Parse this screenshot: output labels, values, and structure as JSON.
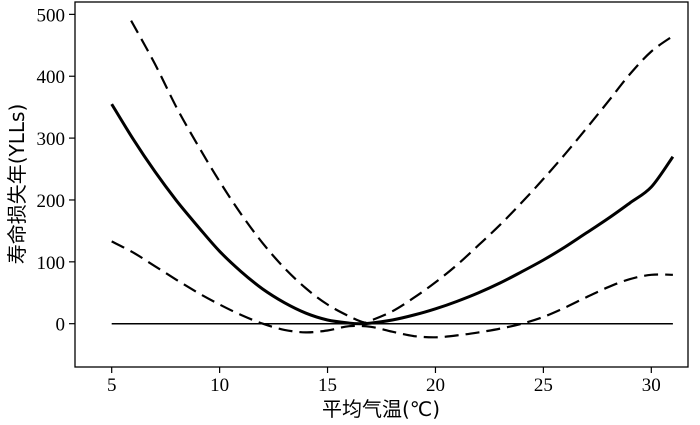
{
  "chart_data": {
    "type": "line",
    "title": "",
    "xlabel": "平均气温(℃)",
    "ylabel": "寿命损失年(YLLs)",
    "xlim": [
      3.3,
      31.7
    ],
    "ylim": [
      -70,
      520
    ],
    "xticks": [
      5,
      10,
      15,
      20,
      25,
      30
    ],
    "yticks": [
      0,
      100,
      200,
      300,
      400,
      500
    ],
    "grid": false,
    "legend": "none",
    "reference_line": {
      "y": 0,
      "x_range": [
        5,
        31
      ]
    },
    "series": [
      {
        "style": "solid",
        "x": [
          5.0,
          6.0,
          7.0,
          8.0,
          9.0,
          10.0,
          11.0,
          12.0,
          13.0,
          14.0,
          15.0,
          16.0,
          16.5,
          17.0,
          18.0,
          19.0,
          20.0,
          21.0,
          22.0,
          23.0,
          24.0,
          25.0,
          26.0,
          27.0,
          28.0,
          29.0,
          30.0,
          31.0
        ],
        "y": [
          355,
          298,
          246,
          199,
          157,
          117,
          84,
          56,
          34,
          17,
          6,
          1,
          0,
          1,
          6,
          14,
          24,
          36,
          50,
          66,
          84,
          103,
          124,
          147,
          170,
          195,
          221,
          270
        ]
      },
      {
        "style": "dashed",
        "x": [
          5.9,
          7.0,
          8.0,
          9.0,
          10.0,
          11.0,
          12.0,
          13.0,
          14.0,
          15.0,
          16.0,
          16.7,
          17.0,
          18.0,
          19.0,
          20.0,
          21.0,
          22.0,
          23.0,
          24.0,
          25.0,
          26.0,
          27.0,
          28.0,
          29.0,
          30.0,
          31.0
        ],
        "y": [
          490,
          420,
          350,
          288,
          230,
          177,
          130,
          90,
          57,
          31,
          12,
          2,
          5,
          20,
          42,
          67,
          95,
          127,
          160,
          196,
          234,
          274,
          316,
          359,
          403,
          440,
          465
        ]
      },
      {
        "style": "dashed",
        "x": [
          5.0,
          6.0,
          7.0,
          8.0,
          9.0,
          10.0,
          11.0,
          12.0,
          13.0,
          14.0,
          15.0,
          16.0,
          17.0,
          18.0,
          19.0,
          20.0,
          21.0,
          22.0,
          23.0,
          24.0,
          25.0,
          26.0,
          27.0,
          28.0,
          29.0,
          30.0,
          31.0
        ],
        "y": [
          133,
          115,
          93,
          71,
          50,
          31,
          14,
          0,
          -10,
          -14,
          -11,
          -4,
          -5,
          -13,
          -20,
          -22,
          -19,
          -14,
          -8,
          0,
          11,
          26,
          43,
          59,
          72,
          79,
          79
        ]
      }
    ]
  }
}
